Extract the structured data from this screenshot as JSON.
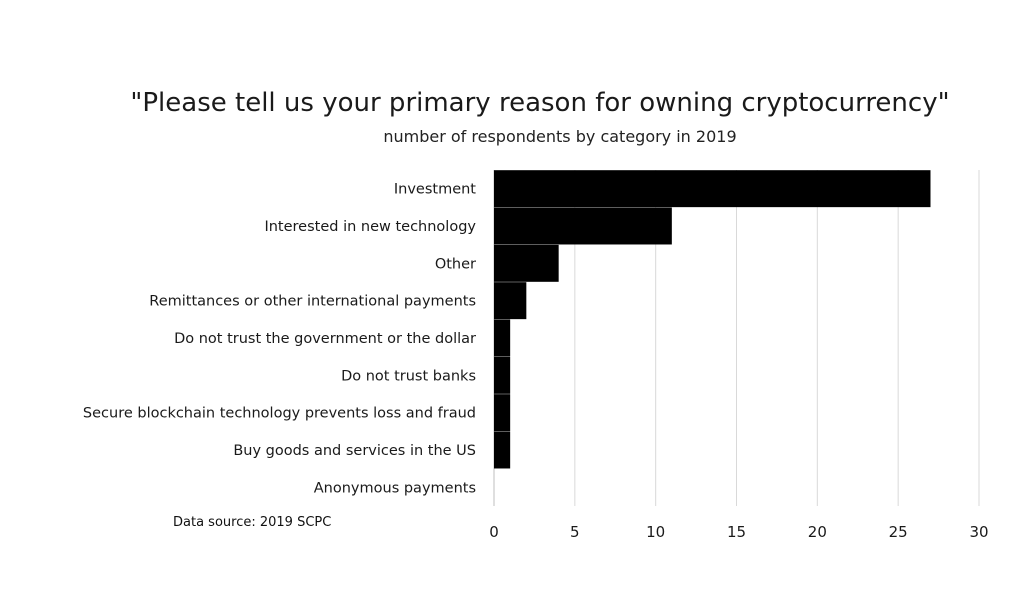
{
  "chart_data": {
    "type": "bar",
    "orientation": "horizontal",
    "title": "\"Please tell us your primary reason for owning cryptocurrency\"",
    "subtitle": "number  of respondents by category in 2019",
    "source": "Data source: 2019 SCPC",
    "xlabel": "",
    "ylabel": "",
    "categories": [
      "Investment",
      "Interested in new technology",
      "Other",
      "Remittances or other international payments",
      "Do not trust the government or the dollar",
      "Do not trust banks",
      "Secure blockchain technology prevents loss and fraud",
      "Buy goods and services in the US",
      "Anonymous payments"
    ],
    "values": [
      27,
      11,
      4,
      2,
      1,
      1,
      1,
      1,
      0
    ],
    "xlim": [
      0,
      30
    ],
    "x_ticks": [
      0,
      5,
      10,
      15,
      20,
      25,
      30
    ],
    "grid": true,
    "legend": "none",
    "bar_color": "#000000",
    "grid_color": "#d9d9d9"
  }
}
